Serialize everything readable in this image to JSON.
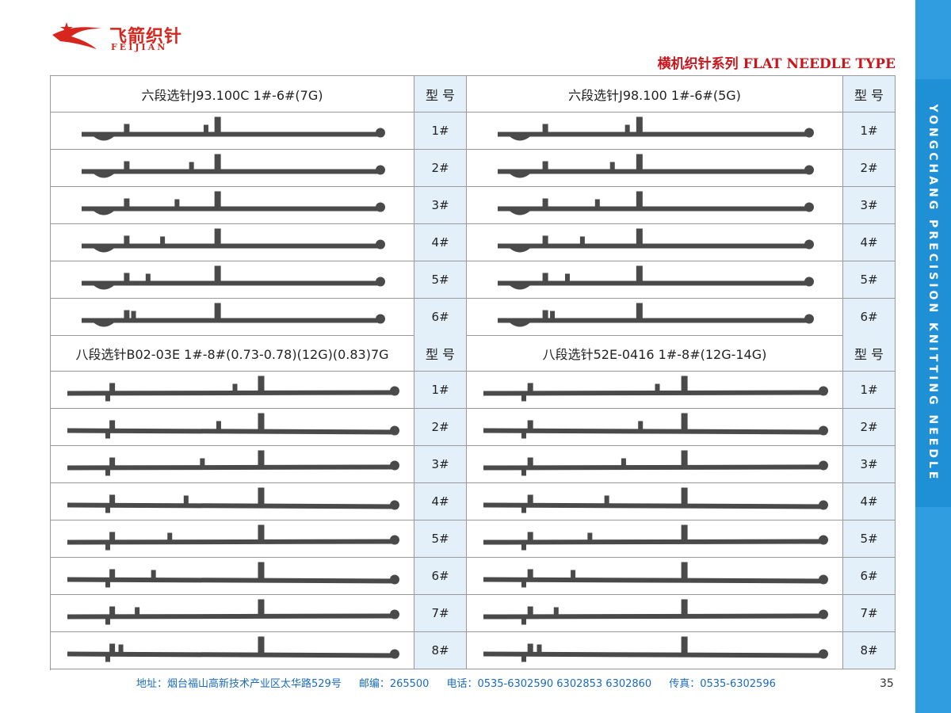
{
  "header": {
    "logo_cn": "飞箭织针",
    "logo_en": "FEIJIAN",
    "title": "横机织针系列 FLAT NEEDLE TYPE"
  },
  "side_text": "YONGCHANG PRECISION KNITTING NEEDLE",
  "sections": [
    {
      "title": "六段选针J93.100C 1#-6#(7G)",
      "header": "型 号",
      "rows": [
        "1#",
        "2#",
        "3#",
        "4#",
        "5#",
        "6#"
      ]
    },
    {
      "title": "六段选针J98.100 1#-6#(5G)",
      "header": "型 号",
      "rows": [
        "1#",
        "2#",
        "3#",
        "4#",
        "5#",
        "6#"
      ]
    },
    {
      "title": "八段选针B02-03E 1#-8#(0.73-0.78)(12G)(0.83)7G",
      "header": "型 号",
      "rows": [
        "1#",
        "2#",
        "3#",
        "4#",
        "5#",
        "6#",
        "7#",
        "8#"
      ]
    },
    {
      "title": "八段选针52E-0416 1#-8#(12G-14G)",
      "header": "型 号",
      "rows": [
        "1#",
        "2#",
        "3#",
        "4#",
        "5#",
        "6#",
        "7#",
        "8#"
      ]
    }
  ],
  "footer": {
    "address": "地址：烟台福山高新技术产业区太华路529号",
    "postcode": "邮编：265500",
    "phone": "电话：0535-6302590 6302853 6302860",
    "fax": "传真：0535-6302596",
    "page": "35"
  }
}
